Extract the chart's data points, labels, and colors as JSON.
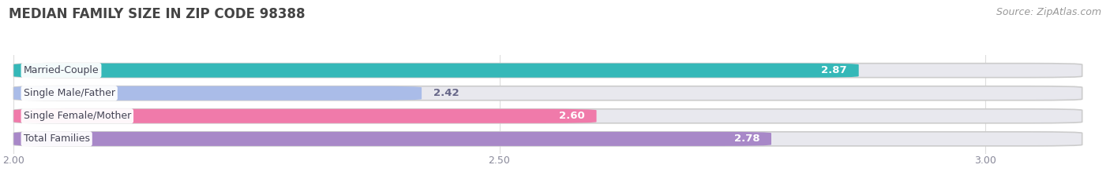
{
  "title": "MEDIAN FAMILY SIZE IN ZIP CODE 98388",
  "source": "Source: ZipAtlas.com",
  "categories": [
    "Married-Couple",
    "Single Male/Father",
    "Single Female/Mother",
    "Total Families"
  ],
  "values": [
    2.87,
    2.42,
    2.6,
    2.78
  ],
  "bar_colors": [
    "#35b8b8",
    "#aabce8",
    "#f07aaa",
    "#a888c8"
  ],
  "bar_bg_color": "#e8e8ee",
  "x_min": 2.0,
  "x_max": 3.0,
  "x_ticks": [
    2.0,
    2.5,
    3.0
  ],
  "background_color": "#ffffff",
  "title_fontsize": 12,
  "bar_height": 0.62,
  "value_fontsize": 9.5,
  "label_fontsize": 9,
  "source_fontsize": 9,
  "value_colors": [
    "#ffffff",
    "#666688",
    "#ffffff",
    "#ffffff"
  ]
}
